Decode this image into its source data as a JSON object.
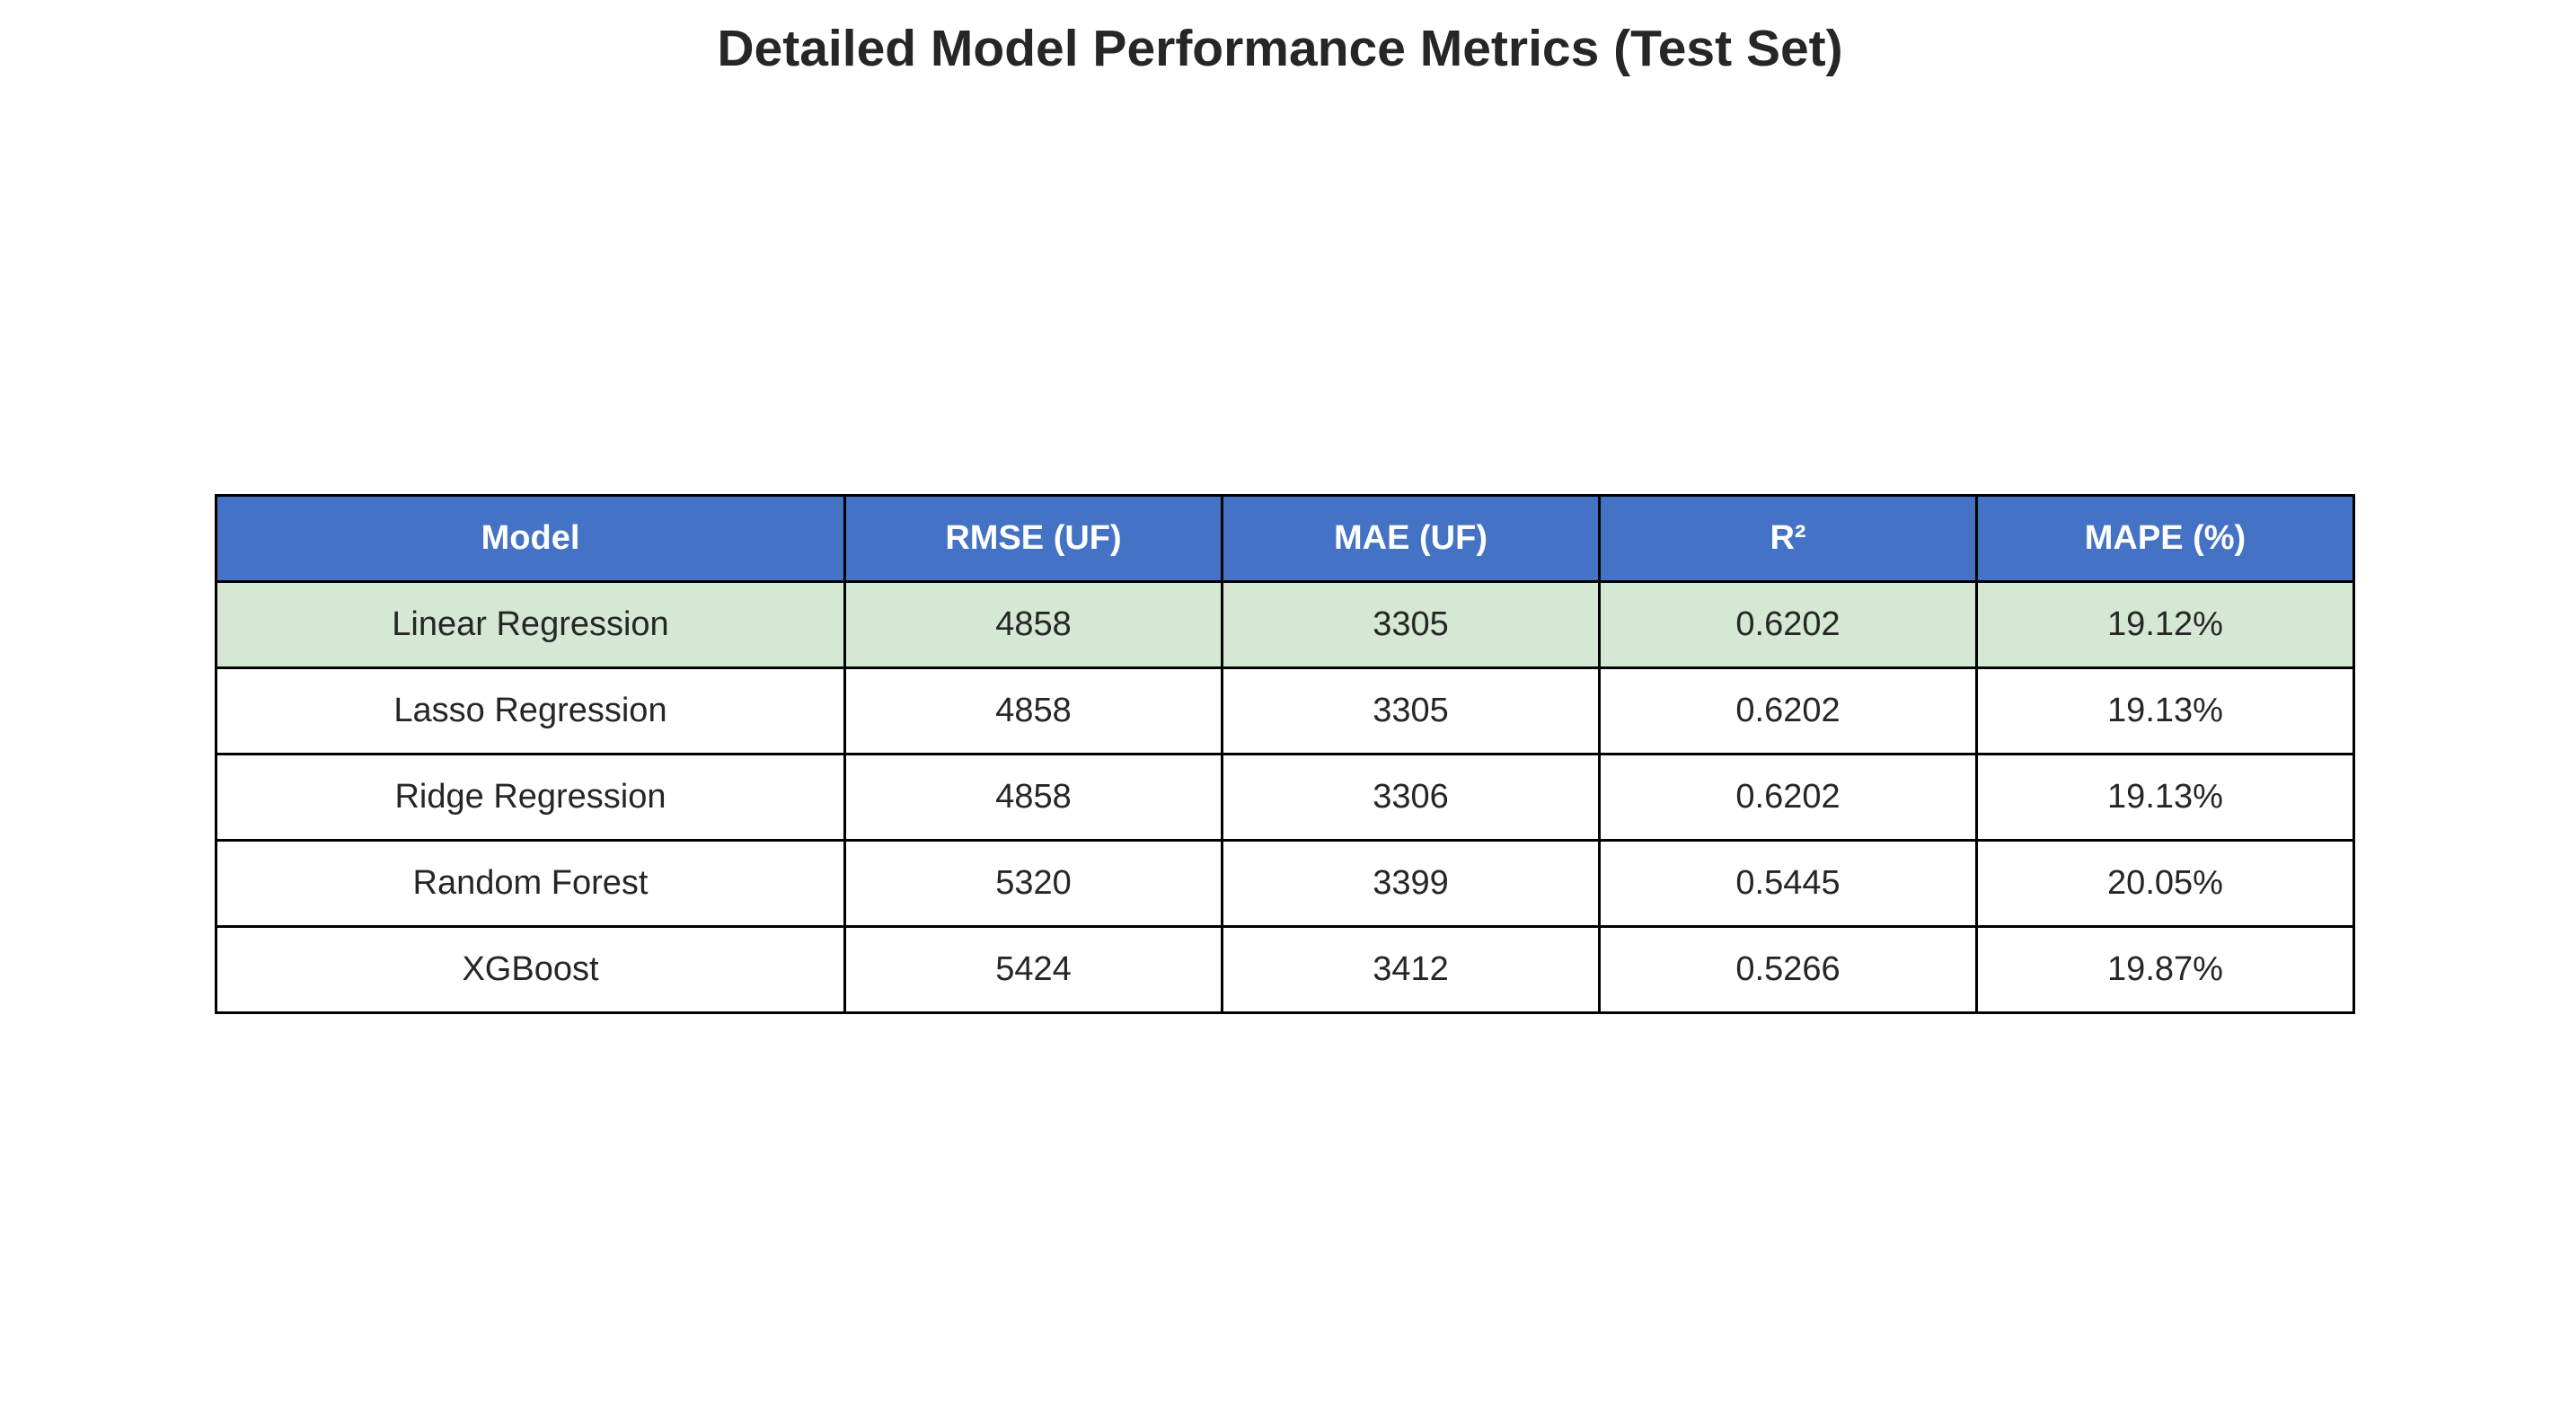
{
  "chart_data": {
    "type": "table",
    "title": "Detailed Model Performance Metrics (Test Set)",
    "columns": [
      "Model",
      "RMSE (UF)",
      "MAE (UF)",
      "R²",
      "MAPE (%)"
    ],
    "rows": [
      [
        "Linear Regression",
        "4858",
        "3305",
        "0.6202",
        "19.12%"
      ],
      [
        "Lasso Regression",
        "4858",
        "3305",
        "0.6202",
        "19.13%"
      ],
      [
        "Ridge Regression",
        "4858",
        "3306",
        "0.6202",
        "19.13%"
      ],
      [
        "Random Forest",
        "5320",
        "3399",
        "0.5445",
        "20.05%"
      ],
      [
        "XGBoost",
        "5424",
        "3412",
        "0.5266",
        "19.87%"
      ]
    ],
    "highlighted_row": 0,
    "colors": {
      "header_background": "#4472c4",
      "header_text": "#ffffff",
      "highlight_background": "#d5e8d4",
      "cell_background": "#ffffff",
      "border": "#000000"
    }
  }
}
